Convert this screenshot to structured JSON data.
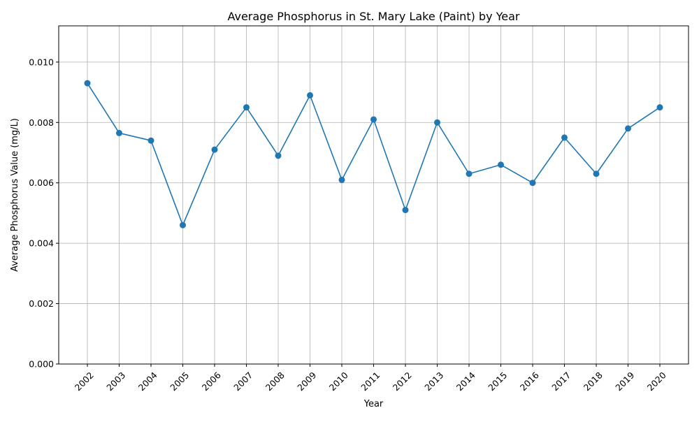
{
  "chart_data": {
    "type": "line",
    "title": "Average Phosphorus in St. Mary Lake (Paint) by Year",
    "xlabel": "Year",
    "ylabel": "Average Phosphorus Value (mg/L)",
    "categories": [
      "2002",
      "2003",
      "2004",
      "2005",
      "2006",
      "2007",
      "2008",
      "2009",
      "2010",
      "2011",
      "2012",
      "2013",
      "2014",
      "2015",
      "2016",
      "2017",
      "2018",
      "2019",
      "2020"
    ],
    "series": [
      {
        "values": [
          0.0093,
          0.00765,
          0.0074,
          0.0046,
          0.0071,
          0.0085,
          0.0069,
          0.0089,
          0.0061,
          0.0081,
          0.0051,
          0.008,
          0.0063,
          0.0066,
          0.006,
          0.0075,
          0.0063,
          0.0078,
          0.0085
        ],
        "color": "#1f77b4",
        "marker": "circle"
      }
    ],
    "ylim": [
      0,
      0.0112
    ],
    "yticks": [
      "0.000",
      "0.002",
      "0.004",
      "0.006",
      "0.008",
      "0.010"
    ],
    "grid": true,
    "x_tick_rotation_deg": 45
  }
}
